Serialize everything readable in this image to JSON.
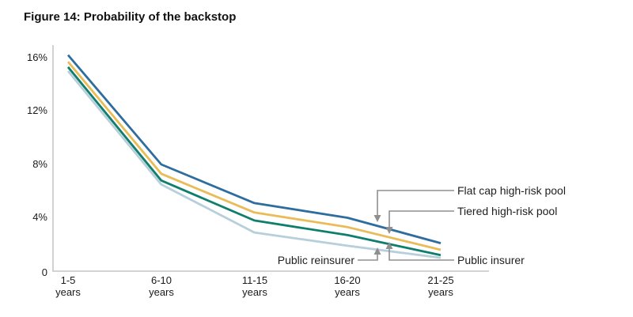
{
  "figure": {
    "title": "Figure 14: Probability of the backstop"
  },
  "chart_data": {
    "type": "line",
    "title": "Figure 14: Probability of the backstop",
    "xlabel": "",
    "ylabel": "",
    "categories": [
      "1-5 years",
      "6-10 years",
      "11-15 years",
      "16-20 years",
      "21-25 years"
    ],
    "x_tick_top": [
      "1-5",
      "6-10",
      "11-15",
      "16-20",
      "21-25"
    ],
    "x_tick_bottom": "years",
    "y_tick_labels": [
      "16%",
      "12%",
      "8%",
      "4%",
      "0"
    ],
    "y_tick_values": [
      16,
      12,
      8,
      4,
      0
    ],
    "ylim": [
      0,
      16
    ],
    "grid": "off",
    "legend_position": "inline-annotations-with-arrows",
    "series": [
      {
        "id": "flat-cap-high-risk-pool",
        "name": "Flat cap high-risk pool",
        "color": "#2e6d9e",
        "values": [
          16.2,
          8.0,
          5.1,
          4.0,
          2.1
        ]
      },
      {
        "id": "tiered-high-risk-pool",
        "name": "Tiered high-risk pool",
        "color": "#e9bc58",
        "values": [
          15.7,
          7.3,
          4.4,
          3.3,
          1.6
        ]
      },
      {
        "id": "public-insurer",
        "name": "Public insurer",
        "color": "#0f7e6d",
        "values": [
          15.3,
          6.8,
          3.8,
          2.7,
          1.2
        ]
      },
      {
        "id": "public-reinsurer",
        "name": "Public reinsurer",
        "color": "#b7cfdb",
        "values": [
          15.0,
          6.5,
          2.9,
          1.9,
          1.0
        ]
      }
    ],
    "colors": {
      "axis_line": "#c6c6c6",
      "leader_line": "#8f8f8f",
      "text": "#1f1f1f"
    }
  }
}
